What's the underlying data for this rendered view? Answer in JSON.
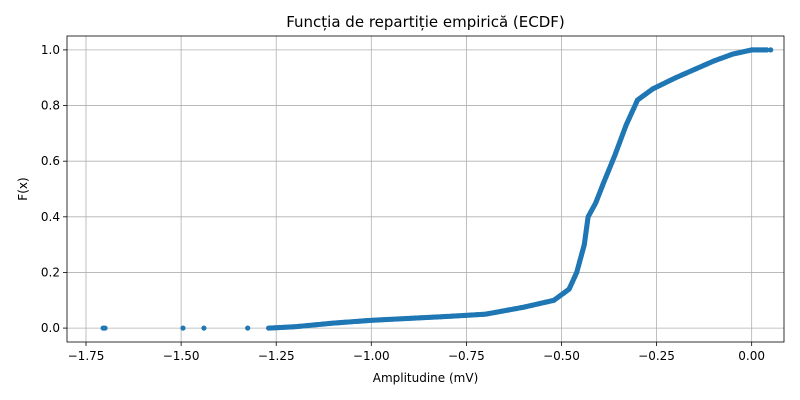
{
  "chart_data": {
    "type": "scatter",
    "title": "Funcția de repartiție empirică (ECDF)",
    "xlabel": "Amplitudine (mV)",
    "ylabel": "F(x)",
    "xlim": [
      -1.8,
      0.085
    ],
    "ylim": [
      -0.05,
      1.05
    ],
    "x_ticks": [
      -1.75,
      -1.5,
      -1.25,
      -1.0,
      -0.75,
      -0.5,
      -0.25,
      0.0
    ],
    "x_tick_labels": [
      "−1.75",
      "−1.50",
      "−1.25",
      "−1.00",
      "−0.75",
      "−0.50",
      "−0.25",
      "0.00"
    ],
    "y_ticks": [
      0.0,
      0.2,
      0.4,
      0.6,
      0.8,
      1.0
    ],
    "y_tick_labels": [
      "0.0",
      "0.2",
      "0.4",
      "0.6",
      "0.8",
      "1.0"
    ],
    "grid": true,
    "marker_color": "#1f77b4",
    "outlier_points": [
      {
        "x": -1.705,
        "y": 0.0
      },
      {
        "x": -1.7,
        "y": 0.0
      },
      {
        "x": -1.495,
        "y": 0.0
      },
      {
        "x": -1.44,
        "y": 0.0
      },
      {
        "x": -1.325,
        "y": 0.0
      },
      {
        "x": 0.05,
        "y": 1.0
      }
    ],
    "curve_points": [
      {
        "x": -1.27,
        "y": 0.0
      },
      {
        "x": -1.2,
        "y": 0.005
      },
      {
        "x": -1.1,
        "y": 0.018
      },
      {
        "x": -1.0,
        "y": 0.028
      },
      {
        "x": -0.9,
        "y": 0.035
      },
      {
        "x": -0.8,
        "y": 0.042
      },
      {
        "x": -0.7,
        "y": 0.05
      },
      {
        "x": -0.6,
        "y": 0.075
      },
      {
        "x": -0.52,
        "y": 0.1
      },
      {
        "x": -0.48,
        "y": 0.14
      },
      {
        "x": -0.46,
        "y": 0.2
      },
      {
        "x": -0.44,
        "y": 0.3
      },
      {
        "x": -0.43,
        "y": 0.4
      },
      {
        "x": -0.41,
        "y": 0.45
      },
      {
        "x": -0.39,
        "y": 0.52
      },
      {
        "x": -0.36,
        "y": 0.62
      },
      {
        "x": -0.33,
        "y": 0.73
      },
      {
        "x": -0.3,
        "y": 0.82
      },
      {
        "x": -0.26,
        "y": 0.86
      },
      {
        "x": -0.2,
        "y": 0.9
      },
      {
        "x": -0.15,
        "y": 0.93
      },
      {
        "x": -0.1,
        "y": 0.96
      },
      {
        "x": -0.05,
        "y": 0.985
      },
      {
        "x": 0.0,
        "y": 1.0
      },
      {
        "x": 0.04,
        "y": 1.0
      }
    ]
  }
}
